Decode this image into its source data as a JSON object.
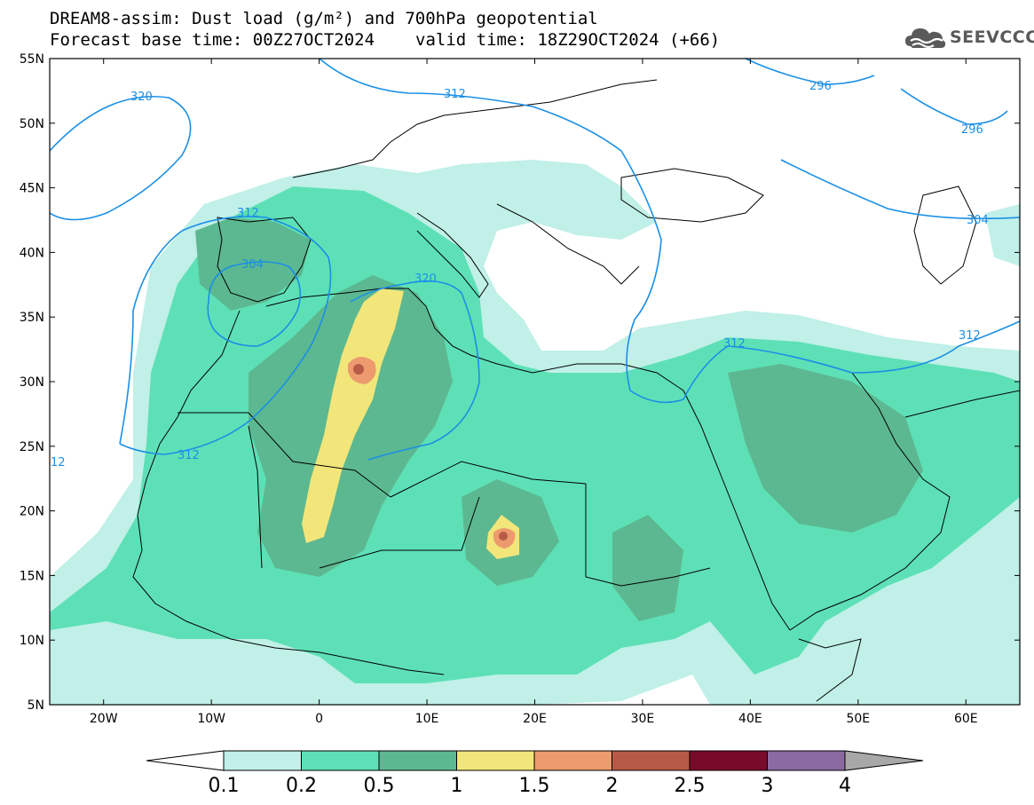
{
  "title": {
    "line1": "DREAM8-assim: Dust load (g/m²) and 700hPa geopotential",
    "line2_left": "Forecast base time: 00Z27OCT2024",
    "line2_right": "valid time: 18Z29OCT2024 (+66)"
  },
  "logo": {
    "text": "SEEVCCC",
    "icon": "cloud-icon",
    "color": "#5a5a5a"
  },
  "map": {
    "lon_range": [
      -25,
      65
    ],
    "lat_range": [
      5,
      55
    ],
    "lat_labels": [
      "55N",
      "50N",
      "45N",
      "40N",
      "35N",
      "30N",
      "25N",
      "20N",
      "15N",
      "10N",
      "5N"
    ],
    "lon_labels": [
      "20W",
      "10W",
      "0",
      "10E",
      "20E",
      "30E",
      "40E",
      "50E",
      "60E"
    ],
    "contour_labels": [
      "320",
      "312",
      "296",
      "296",
      "312",
      "304",
      "320",
      "312",
      "312",
      "312",
      "304",
      "12"
    ],
    "contour_color": "#1a8fe6"
  },
  "colorbar": {
    "levels": [
      "0.1",
      "0.2",
      "0.5",
      "1",
      "1.5",
      "2",
      "2.5",
      "3",
      "4"
    ],
    "colors": [
      "#c0f0e8",
      "#5ee0b6",
      "#5cb890",
      "#f2e67a",
      "#ec9a6e",
      "#b85a48",
      "#7a0a2a",
      "#8a6aa0"
    ],
    "under_color": "#ffffff",
    "over_color": "#a8a8a8"
  }
}
